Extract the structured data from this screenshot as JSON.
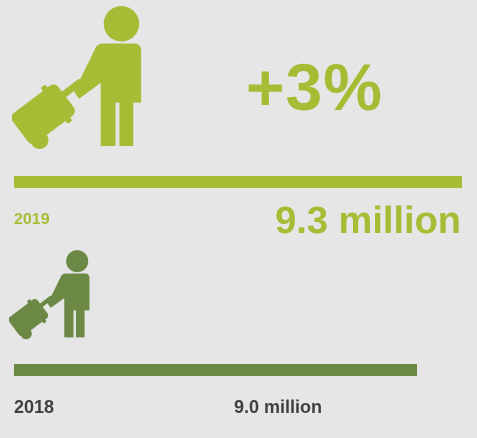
{
  "change_label": "+3%",
  "colors": {
    "background": "#e6e6e6",
    "series_2019": "#a4bd34",
    "series_2018": "#6b8845",
    "label_2018": "#3f3f3f"
  },
  "icons": {
    "traveler_2019": "traveler-with-suitcase-icon",
    "traveler_2018": "traveler-with-suitcase-icon"
  },
  "chart_data": {
    "type": "bar",
    "orientation": "horizontal",
    "categories": [
      "2019",
      "2018"
    ],
    "values": [
      9.3,
      9.0
    ],
    "value_labels": [
      "9.3 million",
      "9.0 million"
    ],
    "unit": "million",
    "annotation": "+3%",
    "title": "",
    "xlabel": "",
    "ylabel": ""
  }
}
